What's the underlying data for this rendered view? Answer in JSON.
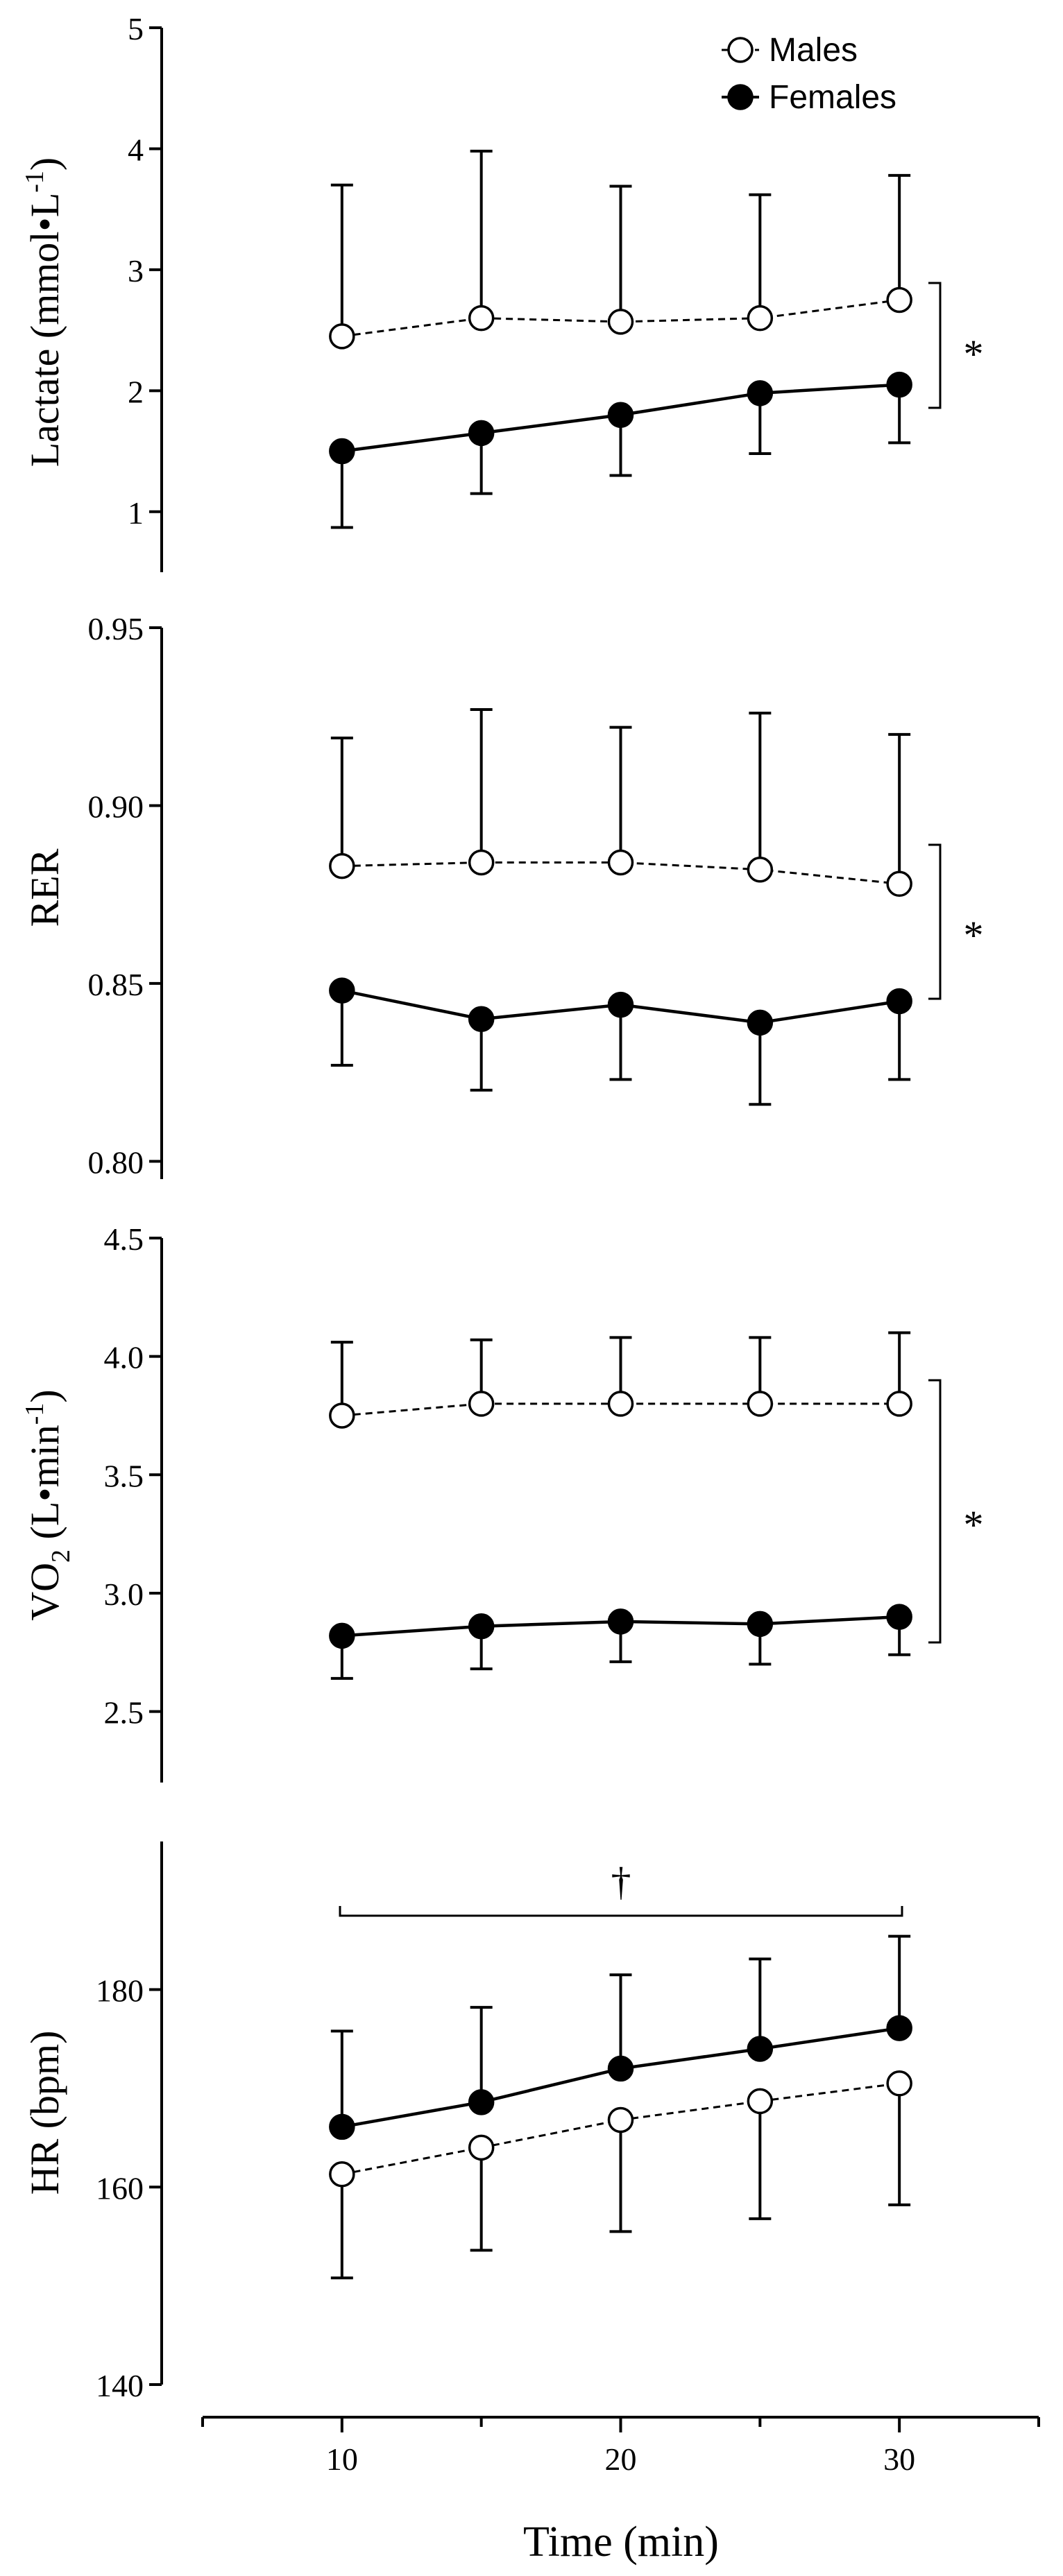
{
  "chart_data": [
    {
      "type": "line",
      "ylabel": "Lactate (mmol•L",
      "ylabel_sup": "-1",
      "ylabel_tail": ")",
      "ylim": [
        0.5,
        5
      ],
      "yticks": [
        1,
        2,
        3,
        4,
        5
      ],
      "ytick_labels": [
        "1",
        "2",
        "3",
        "4",
        "5"
      ],
      "x": [
        10,
        15,
        20,
        25,
        30
      ],
      "series": [
        {
          "name": "Males",
          "values": [
            2.45,
            2.6,
            2.57,
            2.6,
            2.75
          ],
          "sd": [
            1.25,
            1.38,
            1.12,
            1.02,
            1.03
          ],
          "err_dir": "up"
        },
        {
          "name": "Females",
          "values": [
            1.5,
            1.65,
            1.8,
            1.98,
            2.05
          ],
          "sd": [
            0.63,
            0.5,
            0.5,
            0.5,
            0.48
          ],
          "err_dir": "down"
        }
      ],
      "annotation": "*",
      "legend": {
        "position": "top-right",
        "entries": [
          "Males",
          "Females"
        ]
      }
    },
    {
      "type": "line",
      "ylabel": "RER",
      "ylim": [
        0.795,
        0.95
      ],
      "yticks": [
        0.8,
        0.85,
        0.9,
        0.95
      ],
      "ytick_labels": [
        "0.80",
        "0.85",
        "0.90",
        "0.95"
      ],
      "x": [
        10,
        15,
        20,
        25,
        30
      ],
      "series": [
        {
          "name": "Males",
          "values": [
            0.883,
            0.884,
            0.884,
            0.882,
            0.878
          ],
          "sd": [
            0.036,
            0.043,
            0.038,
            0.044,
            0.042
          ],
          "err_dir": "up"
        },
        {
          "name": "Females",
          "values": [
            0.848,
            0.84,
            0.844,
            0.839,
            0.845
          ],
          "sd": [
            0.021,
            0.02,
            0.021,
            0.023,
            0.022
          ],
          "err_dir": "down"
        }
      ],
      "annotation": "*"
    },
    {
      "type": "line",
      "ylabel": "VO",
      "ylabel_sub": "2",
      "ylabel_tail": " (L•min",
      "ylabel_sup": "-1",
      "ylabel_end": ")",
      "ylim": [
        2.2,
        4.5
      ],
      "yticks": [
        2.5,
        3.0,
        3.5,
        4.0,
        4.5
      ],
      "ytick_labels": [
        "2.5",
        "3.0",
        "3.5",
        "4.0",
        "4.5"
      ],
      "x": [
        10,
        15,
        20,
        25,
        30
      ],
      "series": [
        {
          "name": "Males",
          "values": [
            3.75,
            3.8,
            3.8,
            3.8,
            3.8
          ],
          "sd": [
            0.31,
            0.27,
            0.28,
            0.28,
            0.3
          ],
          "err_dir": "up"
        },
        {
          "name": "Females",
          "values": [
            2.82,
            2.86,
            2.88,
            2.87,
            2.9
          ],
          "sd": [
            0.18,
            0.18,
            0.17,
            0.17,
            0.16
          ],
          "err_dir": "down"
        }
      ],
      "annotation": "*"
    },
    {
      "type": "line",
      "ylabel": "HR (bpm)",
      "ylim": [
        140,
        195
      ],
      "yticks": [
        140,
        160,
        180
      ],
      "ytick_labels": [
        "140",
        "160",
        "180"
      ],
      "x": [
        10,
        15,
        20,
        25,
        30
      ],
      "series": [
        {
          "name": "Males",
          "values": [
            161.3,
            164,
            166.8,
            168.7,
            170.5
          ],
          "sd": [
            10.5,
            10.4,
            11.3,
            11.9,
            12.3
          ],
          "err_dir": "down"
        },
        {
          "name": "Females",
          "values": [
            166.1,
            168.6,
            172,
            174,
            176.1
          ],
          "sd": [
            9.7,
            9.6,
            9.5,
            9.1,
            9.3
          ],
          "err_dir": "up"
        }
      ],
      "annotation": "†"
    }
  ],
  "x_axis": {
    "xlabel": "Time (min)",
    "xlim": [
      5,
      35
    ],
    "major_ticks": [
      10,
      20,
      30
    ],
    "major_labels": [
      "10",
      "20",
      "30"
    ],
    "minor_ticks": [
      5,
      15,
      25,
      35
    ]
  }
}
